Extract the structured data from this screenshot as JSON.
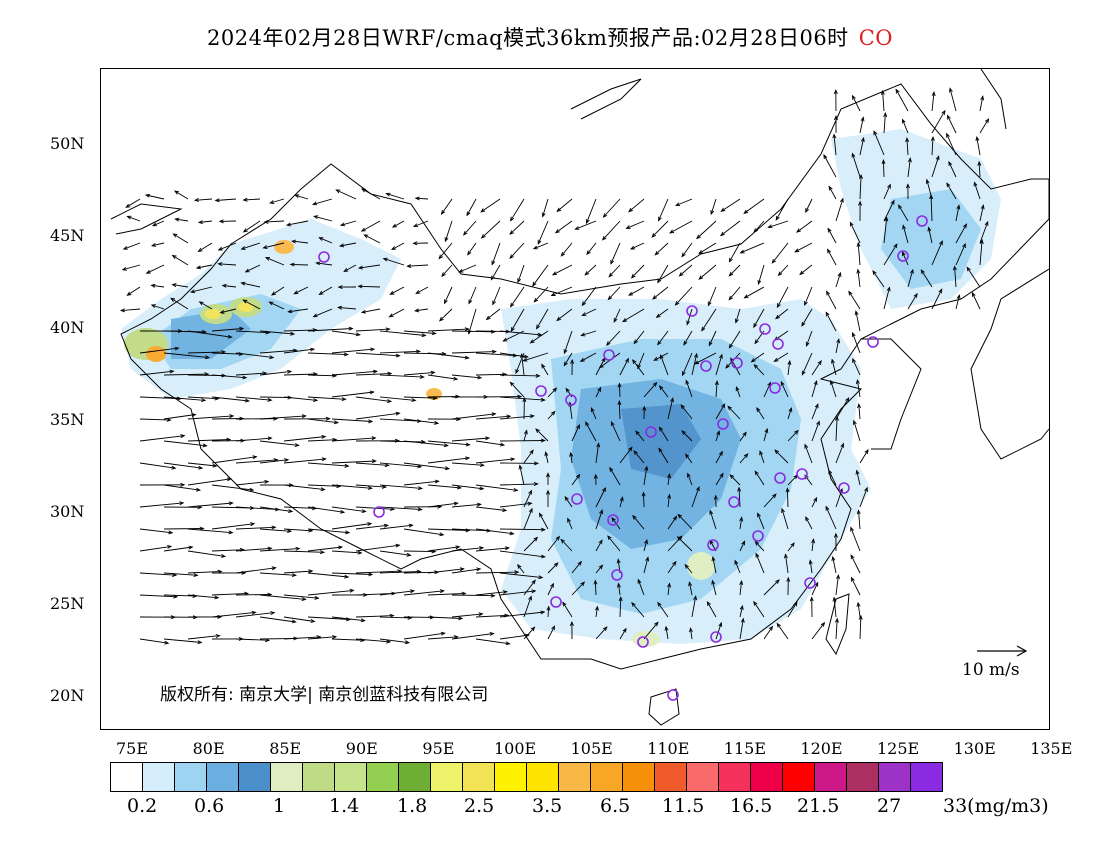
{
  "title": {
    "main": "2024年02月28日WRF/cmaq模式36km预报产品:02月28日06时",
    "species": "CO"
  },
  "axes": {
    "y_ticks": [
      "50N",
      "45N",
      "40N",
      "35N",
      "30N",
      "25N",
      "20N"
    ],
    "x_ticks": [
      "75E",
      "80E",
      "85E",
      "90E",
      "95E",
      "100E",
      "105E",
      "110E",
      "115E",
      "120E",
      "125E",
      "130E",
      "135E"
    ]
  },
  "copyright": "版权所有: 南京大学|  南京创蓝科技有限公司",
  "wind_reference": "10 m/s",
  "colorbar": {
    "colors": [
      "#ffffff",
      "#d6eefb",
      "#9ed4f2",
      "#6bafe0",
      "#4a8fca",
      "#dfeec0",
      "#bfdb86",
      "#c6e28a",
      "#93cf50",
      "#6fae34",
      "#eef36c",
      "#f2e356",
      "#fff200",
      "#fde500",
      "#f9b846",
      "#f8a626",
      "#f68f0a",
      "#ef5b2a",
      "#fb6a6a",
      "#f3315a",
      "#ee0049",
      "#ff0000",
      "#cc1886",
      "#ab3061",
      "#9c32c6",
      "#8a2be2"
    ],
    "labels": [
      "0.2",
      "0.6",
      "1",
      "1.4",
      "1.8",
      "2.5",
      "3.5",
      "6.5",
      "11.5",
      "16.5",
      "21.5",
      "27",
      "33(mg/m3)"
    ],
    "unit": "mg/m3"
  }
}
